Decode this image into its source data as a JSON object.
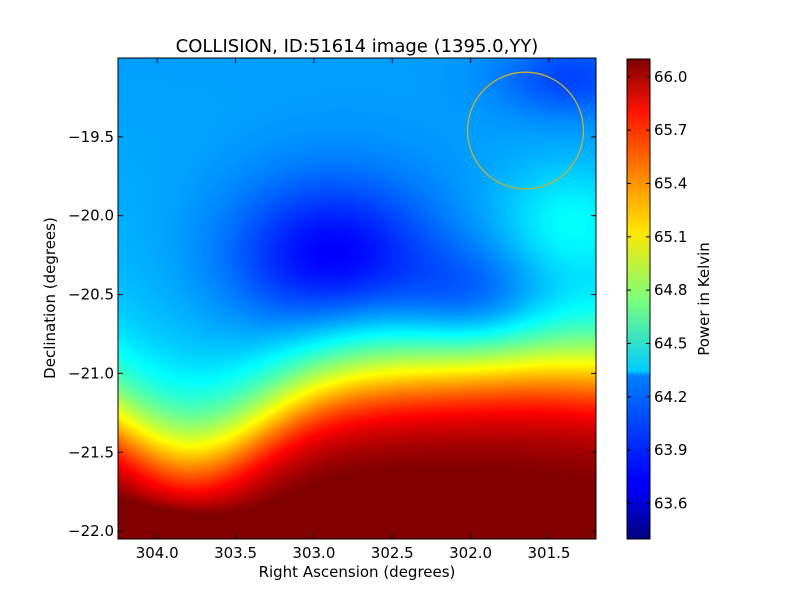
{
  "chart_data": {
    "type": "heatmap",
    "title": "COLLISION, ID:51614 image (1395.0,YY)",
    "xlabel": "Right Ascension (degrees)",
    "ylabel": "Declination (degrees)",
    "colorbar_label": "Power in Kelvin",
    "colormap": "jet",
    "xlim": [
      304.25,
      301.2
    ],
    "ylim": [
      -22.05,
      -19.0
    ],
    "x_ticks": [
      304.0,
      303.5,
      303.0,
      302.5,
      302.0,
      301.5
    ],
    "x_tick_labels": [
      "304.0",
      "303.5",
      "303.0",
      "302.5",
      "302.0",
      "301.5"
    ],
    "y_ticks": [
      -19.5,
      -20.0,
      -20.5,
      -21.0,
      -21.5,
      -22.0
    ],
    "y_tick_labels": [
      "−19.5",
      "−20.0",
      "−20.5",
      "−21.0",
      "−21.5",
      "−22.0"
    ],
    "colorbar_range": [
      63.4,
      66.1
    ],
    "colorbar_ticks": [
      66.0,
      65.7,
      65.4,
      65.1,
      64.8,
      64.5,
      64.2,
      63.9,
      63.6
    ],
    "colorbar_tick_labels": [
      "66.0",
      "65.7",
      "65.4",
      "65.1",
      "64.8",
      "64.5",
      "64.2",
      "63.9",
      "63.6"
    ],
    "circle": {
      "ra": 301.65,
      "dec": -19.46,
      "radius_deg": 0.37,
      "color": "#c8b030"
    },
    "grid": false
  }
}
